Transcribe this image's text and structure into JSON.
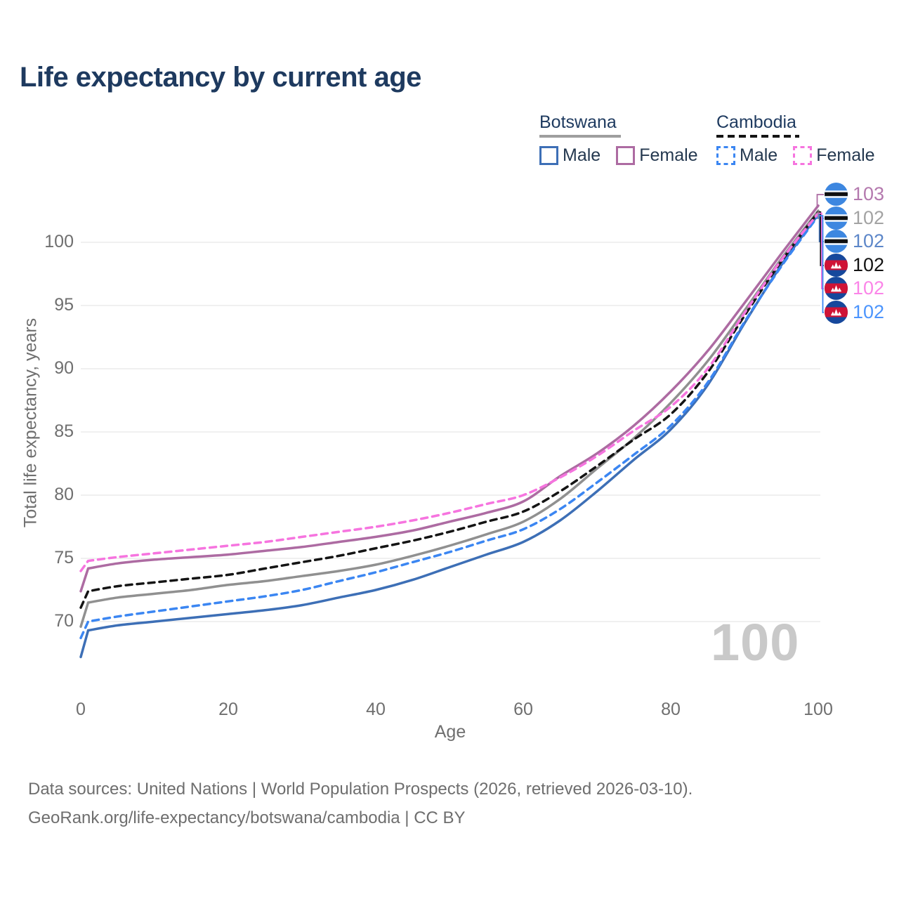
{
  "page": {
    "title": "Life expectancy by current age",
    "watermark": "100",
    "footer": {
      "line1": "Data sources: United Nations | World Population Prospects (2026, retrieved 2026-03-10).",
      "line2": "GeoRank.org/life-expectancy/botswana/cambodia | CC BY"
    }
  },
  "legend": {
    "groups": [
      {
        "country": "Botswana",
        "line_style": "solid",
        "underline_color": "#9e9e9e",
        "items": [
          {
            "label": "Male",
            "color": "#3d6fb6",
            "dashed": false
          },
          {
            "label": "Female",
            "color": "#ad6ba2",
            "dashed": false
          }
        ]
      },
      {
        "country": "Cambodia",
        "line_style": "dashed",
        "underline_color": "#141414",
        "items": [
          {
            "label": "Male",
            "color": "#3b86f2",
            "dashed": true
          },
          {
            "label": "Female",
            "color": "#f674df",
            "dashed": true
          }
        ]
      }
    ]
  },
  "chart_data": {
    "type": "line",
    "title": "Life expectancy by current age",
    "xlabel": "Age",
    "ylabel": "Total life expectancy, years",
    "x_ticks": [
      0,
      20,
      40,
      60,
      80,
      100
    ],
    "y_ticks": [
      70,
      75,
      80,
      85,
      90,
      95,
      100
    ],
    "xlim": [
      0,
      100
    ],
    "ylim_displayed": [
      70,
      100
    ],
    "grid": "horizontal",
    "legend_position": "top-right",
    "ages": [
      0,
      1,
      5,
      10,
      15,
      20,
      25,
      30,
      35,
      40,
      45,
      50,
      55,
      60,
      65,
      70,
      75,
      80,
      85,
      90,
      95,
      100
    ],
    "series": [
      {
        "id": "bw_f",
        "name": "Botswana Female",
        "country": "Botswana",
        "sex": "Female",
        "dashed": false,
        "color": "#ad6ba2",
        "label_color": "#b479ae",
        "end_label": "103",
        "flag_icon": "botswana-flag-icon",
        "values": [
          72.4,
          74.2,
          74.6,
          74.9,
          75.1,
          75.3,
          75.6,
          75.9,
          76.3,
          76.7,
          77.2,
          77.9,
          78.6,
          79.5,
          81.5,
          83.3,
          85.5,
          88.2,
          91.4,
          95.2,
          99.1,
          102.9
        ]
      },
      {
        "id": "bw_all",
        "name": "Botswana",
        "country": "Botswana",
        "sex": "Both",
        "dashed": false,
        "color": "#909090",
        "label_color": "#a3a3a3",
        "end_label": "102",
        "flag_icon": "botswana-flag-icon",
        "values": [
          69.6,
          71.5,
          71.9,
          72.2,
          72.5,
          72.9,
          73.2,
          73.6,
          74.0,
          74.5,
          75.2,
          76.0,
          76.9,
          77.9,
          79.7,
          82.1,
          84.5,
          87.3,
          90.6,
          94.6,
          98.7,
          102.5
        ]
      },
      {
        "id": "bw_m",
        "name": "Botswana Male",
        "country": "Botswana",
        "sex": "Male",
        "dashed": false,
        "color": "#3d6fb6",
        "label_color": "#5d87c9",
        "end_label": "102",
        "flag_icon": "botswana-flag-icon",
        "values": [
          67.2,
          69.3,
          69.7,
          70.0,
          70.3,
          70.6,
          70.9,
          71.3,
          71.9,
          72.5,
          73.3,
          74.3,
          75.3,
          76.3,
          78.0,
          80.3,
          82.8,
          85.2,
          88.7,
          93.6,
          98.2,
          102.2
        ]
      },
      {
        "id": "kh_all",
        "name": "Cambodia",
        "country": "Cambodia",
        "sex": "Both",
        "dashed": true,
        "color": "#141414",
        "label_color": "#141414",
        "end_label": "102",
        "flag_icon": "cambodia-flag-icon",
        "values": [
          71.1,
          72.4,
          72.8,
          73.1,
          73.4,
          73.7,
          74.2,
          74.7,
          75.2,
          75.8,
          76.4,
          77.1,
          77.9,
          78.7,
          80.3,
          82.3,
          84.4,
          86.4,
          89.7,
          94.2,
          98.5,
          102.4
        ]
      },
      {
        "id": "kh_f",
        "name": "Cambodia Female",
        "country": "Cambodia",
        "sex": "Female",
        "dashed": true,
        "color": "#f674df",
        "label_color": "#fb85e8",
        "end_label": "102",
        "flag_icon": "cambodia-flag-icon",
        "values": [
          74.0,
          74.8,
          75.1,
          75.4,
          75.7,
          76.0,
          76.3,
          76.7,
          77.1,
          77.5,
          78.0,
          78.6,
          79.3,
          80.0,
          81.4,
          83.1,
          85.1,
          87.0,
          90.0,
          94.4,
          98.6,
          102.3
        ]
      },
      {
        "id": "kh_m",
        "name": "Cambodia Male",
        "country": "Cambodia",
        "sex": "Male",
        "dashed": true,
        "color": "#3b86f2",
        "label_color": "#4c95fd",
        "end_label": "102",
        "flag_icon": "cambodia-flag-icon",
        "values": [
          68.7,
          70.0,
          70.4,
          70.8,
          71.2,
          71.6,
          72.0,
          72.5,
          73.2,
          73.9,
          74.7,
          75.5,
          76.4,
          77.3,
          78.9,
          81.0,
          83.2,
          85.5,
          88.9,
          93.7,
          98.1,
          102.1
        ]
      }
    ]
  }
}
